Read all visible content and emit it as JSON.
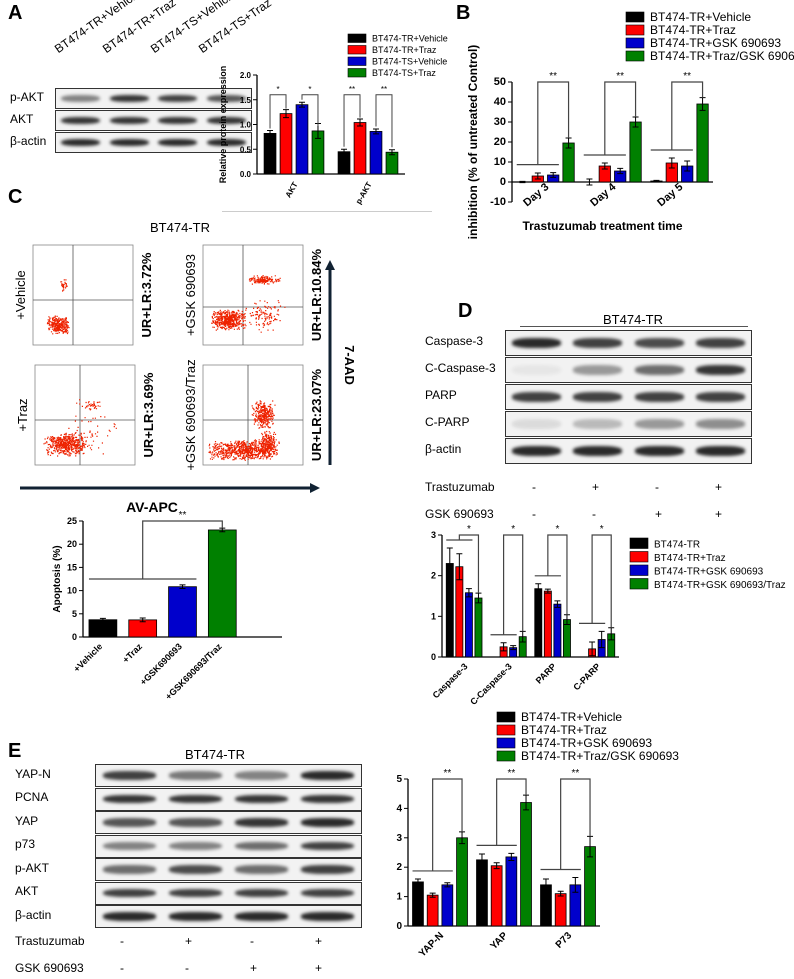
{
  "panels": {
    "a": "A",
    "b": "B",
    "c": "C",
    "d": "D",
    "e": "E"
  },
  "panel_a": {
    "lanes": [
      "BT474-TR+Vehicle",
      "BT474-TR+Traz",
      "BT474-TS+Vehicle",
      "BT474-TS+Traz"
    ],
    "rows": [
      "p-AKT",
      "AKT",
      "β-actin"
    ]
  },
  "panel_c": {
    "title": "BT474-TR",
    "plots": [
      {
        "label": "+Vehicle",
        "value": "UR+LR:3.72%"
      },
      {
        "label": "+GSK 690693",
        "value": "UR+LR:10.84%"
      },
      {
        "label": "+Traz",
        "value": "UR+LR:3.69%"
      },
      {
        "label": "+GSK 690693/Traz",
        "value": "UR+LR:23.07%"
      }
    ],
    "y_axis": "7-AAD",
    "x_axis": "AV-APC"
  },
  "panel_d": {
    "title": "BT474-TR",
    "rows": [
      "Caspase-3",
      "C-Caspase-3",
      "PARP",
      "C-PARP",
      "β-actin"
    ],
    "treatments": [
      {
        "name": "Trastuzumab",
        "marks": [
          "-",
          "+",
          "-",
          "+"
        ]
      },
      {
        "name": "GSK 690693",
        "marks": [
          "-",
          "-",
          "+",
          "+"
        ]
      }
    ]
  },
  "panel_e": {
    "title": "BT474-TR",
    "rows": [
      "YAP-N",
      "PCNA",
      "YAP",
      "p73",
      "p-AKT",
      "AKT",
      "β-actin"
    ],
    "treatments": [
      {
        "name": "Trastuzumab",
        "marks": [
          "-",
          "+",
          "-",
          "+"
        ]
      },
      {
        "name": "GSK 690693",
        "marks": [
          "-",
          "-",
          "+",
          "+"
        ]
      }
    ]
  },
  "chart_data": [
    {
      "id": "A",
      "type": "bar",
      "title": "",
      "xlabel": "",
      "ylabel": "Relative protein expression",
      "ylim": [
        0,
        2.0
      ],
      "yticks": [
        "0.0",
        "0.5",
        "1.0",
        "1.5",
        "2.0"
      ],
      "categories": [
        "AKT",
        "p-AKT"
      ],
      "legend": "top-right",
      "colors": [
        "#000000",
        "#ff0000",
        "#0000cc",
        "#008000"
      ],
      "series": [
        {
          "name": "BT474-TR+Vehicle",
          "values": [
            0.82,
            0.45
          ],
          "errors": [
            0.06,
            0.05
          ]
        },
        {
          "name": "BT474-TR+Traz",
          "values": [
            1.22,
            1.04
          ],
          "errors": [
            0.08,
            0.07
          ]
        },
        {
          "name": "BT474-TS+Vehicle",
          "values": [
            1.4,
            0.86
          ],
          "errors": [
            0.05,
            0.05
          ]
        },
        {
          "name": "BT474-TS+Traz",
          "values": [
            0.87,
            0.44
          ],
          "errors": [
            0.15,
            0.05
          ]
        }
      ],
      "significance": [
        {
          "group": 0,
          "pairs": [
            [
              0,
              1
            ],
            [
              2,
              3
            ]
          ],
          "labels": [
            "*",
            "*"
          ]
        },
        {
          "group": 1,
          "pairs": [
            [
              0,
              1
            ],
            [
              2,
              3
            ]
          ],
          "labels": [
            "**",
            "**"
          ]
        }
      ]
    },
    {
      "id": "B",
      "type": "bar",
      "title": "",
      "xlabel": "Trastuzumab treatment time",
      "ylabel": "inhibition (% of untreated Control)",
      "ylim": [
        -10,
        50
      ],
      "yticks": [
        "-10",
        "0",
        "10",
        "20",
        "30",
        "40",
        "50"
      ],
      "categories": [
        "Day 3",
        "Day 4",
        "Day 5"
      ],
      "legend": "top-right",
      "colors": [
        "#000000",
        "#ff0000",
        "#0000cc",
        "#008000"
      ],
      "series": [
        {
          "name": "BT474-TR+Vehicle",
          "values": [
            0,
            0,
            0.5
          ],
          "errors": [
            0.3,
            1.5,
            0.3
          ]
        },
        {
          "name": "BT474-TR+Traz",
          "values": [
            3,
            8,
            9.5
          ],
          "errors": [
            1.5,
            1.5,
            2.5
          ]
        },
        {
          "name": "BT474-TR+GSK 690693",
          "values": [
            3.5,
            5.5,
            8
          ],
          "errors": [
            1.2,
            1.3,
            2.5
          ]
        },
        {
          "name": "BT474-TR+Traz/GSK 690693",
          "values": [
            19.5,
            30,
            39
          ],
          "errors": [
            2.5,
            2.5,
            3.2
          ]
        }
      ],
      "significance": [
        {
          "group": 0,
          "labels": [
            "**"
          ]
        },
        {
          "group": 1,
          "labels": [
            "**"
          ]
        },
        {
          "group": 2,
          "labels": [
            "**"
          ]
        }
      ]
    },
    {
      "id": "C",
      "type": "bar",
      "title": "",
      "xlabel": "",
      "ylabel": "Apoptosis (%)",
      "ylim": [
        0,
        25
      ],
      "yticks": [
        "0",
        "5",
        "10",
        "15",
        "20",
        "25"
      ],
      "categories": [
        "+Vehicle",
        "+Traz",
        "+GSK690693",
        "+GSK690693/Traz"
      ],
      "colors": [
        "#000000",
        "#ff0000",
        "#0000cc",
        "#008000"
      ],
      "values": [
        3.72,
        3.69,
        10.84,
        23.07
      ],
      "errors": [
        0.3,
        0.4,
        0.4,
        0.4
      ],
      "significance": [
        {
          "labels": [
            "**"
          ]
        }
      ]
    },
    {
      "id": "D",
      "type": "bar",
      "title": "",
      "xlabel": "",
      "ylabel": "",
      "ylim": [
        0,
        3
      ],
      "yticks": [
        "0",
        "1",
        "2",
        "3"
      ],
      "categories": [
        "Caspase-3",
        "C-Caspase-3",
        "PARP",
        "C-PARP"
      ],
      "legend": "right",
      "colors": [
        "#000000",
        "#ff0000",
        "#0000cc",
        "#008000"
      ],
      "series": [
        {
          "name": "BT474-TR",
          "values": [
            2.3,
            0,
            1.68,
            0
          ],
          "errors": [
            0.38,
            0,
            0.12,
            0
          ]
        },
        {
          "name": "BT474-TR+Traz",
          "values": [
            2.22,
            0.25,
            1.62,
            0.2
          ],
          "errors": [
            0.32,
            0.1,
            0.05,
            0.17
          ]
        },
        {
          "name": "BT474-TR+GSK 690693",
          "values": [
            1.58,
            0.23,
            1.3,
            0.43
          ],
          "errors": [
            0.1,
            0.05,
            0.08,
            0.2
          ]
        },
        {
          "name": "BT474-TR+GSK 690693/Traz",
          "values": [
            1.45,
            0.5,
            0.92,
            0.57
          ],
          "errors": [
            0.12,
            0.13,
            0.12,
            0.15
          ]
        }
      ],
      "significance": [
        {
          "group": 0,
          "labels": [
            "*"
          ]
        },
        {
          "group": 1,
          "labels": [
            "*"
          ]
        },
        {
          "group": 2,
          "labels": [
            "*"
          ]
        },
        {
          "group": 3,
          "labels": [
            "*"
          ]
        }
      ]
    },
    {
      "id": "E",
      "type": "bar",
      "title": "",
      "xlabel": "",
      "ylabel": "",
      "ylim": [
        0,
        5
      ],
      "yticks": [
        "0",
        "1",
        "2",
        "3",
        "4",
        "5"
      ],
      "categories": [
        "YAP-N",
        "YAP",
        "P73"
      ],
      "legend": "top",
      "colors": [
        "#000000",
        "#ff0000",
        "#0000cc",
        "#008000"
      ],
      "series": [
        {
          "name": "BT474-TR+Vehicle",
          "values": [
            1.5,
            2.25,
            1.4
          ],
          "errors": [
            0.1,
            0.2,
            0.2
          ]
        },
        {
          "name": "BT474-TR+Traz",
          "values": [
            1.05,
            2.05,
            1.1
          ],
          "errors": [
            0.07,
            0.1,
            0.08
          ]
        },
        {
          "name": "BT474-TR+GSK 690693",
          "values": [
            1.4,
            2.35,
            1.4
          ],
          "errors": [
            0.07,
            0.12,
            0.25
          ]
        },
        {
          "name": "BT474-TR+Traz/GSK 690693",
          "values": [
            3.0,
            4.2,
            2.7
          ],
          "errors": [
            0.2,
            0.25,
            0.35
          ]
        }
      ],
      "significance": [
        {
          "group": 0,
          "labels": [
            "**"
          ]
        },
        {
          "group": 1,
          "labels": [
            "**"
          ]
        },
        {
          "group": 2,
          "labels": [
            "**"
          ]
        }
      ]
    }
  ]
}
